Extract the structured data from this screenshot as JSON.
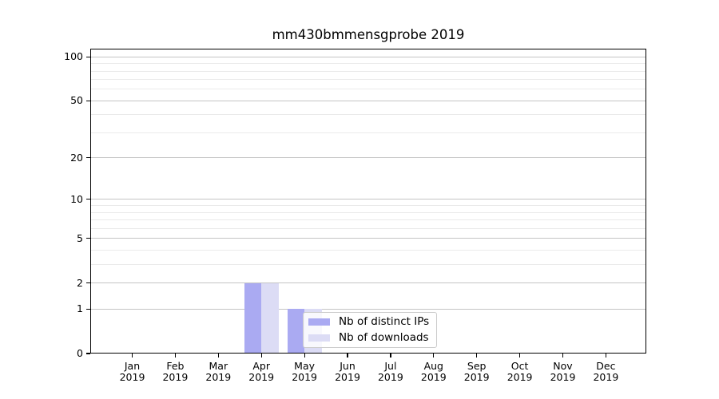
{
  "chart_data": {
    "type": "bar",
    "title": "mm430bmmensgprobe 2019",
    "x": {
      "categories": [
        "Jan",
        "Feb",
        "Mar",
        "Apr",
        "May",
        "Jun",
        "Jul",
        "Aug",
        "Sep",
        "Oct",
        "Nov",
        "Dec"
      ],
      "year_label": "2019"
    },
    "series": [
      {
        "name": "Nb of distinct IPs",
        "color": "#aaaaf2",
        "values": [
          0,
          0,
          0,
          2,
          1,
          0,
          0,
          0,
          0,
          0,
          0,
          0
        ]
      },
      {
        "name": "Nb of downloads",
        "color": "#dcdcf5",
        "values": [
          0,
          0,
          0,
          2,
          1,
          0,
          0,
          0,
          0,
          0,
          0,
          0
        ]
      }
    ],
    "y_axis": {
      "scale": "log1p",
      "ticks": [
        0,
        1,
        2,
        5,
        10,
        20,
        50,
        100
      ],
      "minor_ticks": [
        3,
        4,
        6,
        7,
        8,
        9,
        30,
        40,
        60,
        70,
        80,
        90
      ],
      "range": [
        0,
        112
      ]
    },
    "grid": {
      "horizontal": true,
      "vertical": false
    },
    "legend": {
      "position": "inside-bottom-center"
    },
    "colors": {
      "grid_major": "#c4c4c4",
      "grid_minor": "#eaeaea",
      "spine": "#000000",
      "text": "#000000",
      "background": "#ffffff",
      "legend_border": "#cccccc"
    }
  }
}
